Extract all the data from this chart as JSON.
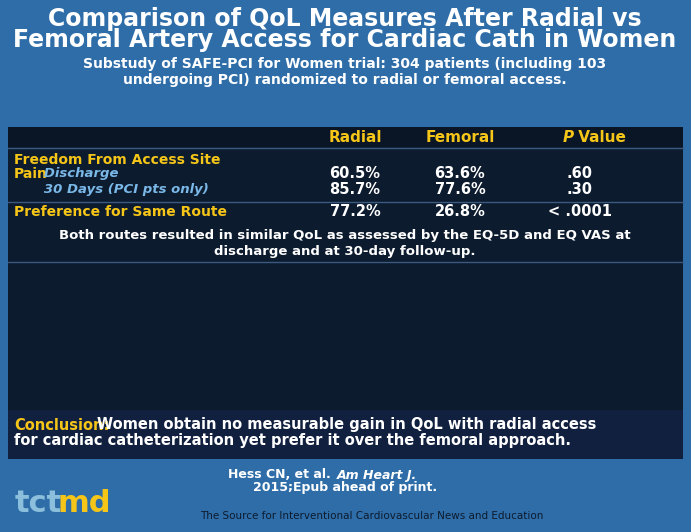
{
  "title_line1": "Comparison of QoL Measures After Radial vs",
  "title_line2": "Femoral Artery Access for Cardiac Cath in Women",
  "subtitle_line1": "Substudy of SAFE-PCI for Women trial: 304 patients (including 103",
  "subtitle_line2": "undergoing PCI) randomized to radial or femoral access.",
  "bg_top": "#2e6da8",
  "bg_dark": "#0d1b2e",
  "bg_conclusion": "#122040",
  "bg_footer": "#2e6da8",
  "table_header": [
    "Radial",
    "Femoral",
    "P Value"
  ],
  "row1_label_line1": "Freedom From Access Site",
  "row1_label_line2": "Pain",
  "row1_sub1": "   Discharge",
  "row1_sub2": "   30 Days (PCI pts only)",
  "row1_data": [
    [
      "60.5%",
      "63.6%",
      ".60"
    ],
    [
      "85.7%",
      "77.6%",
      ".30"
    ]
  ],
  "row2_label": "Preference for Same Route",
  "row2_data": [
    "77.2%",
    "26.8%",
    "< .0001"
  ],
  "note_line1": "Both routes resulted in similar QoL as assessed by the EQ-5D and EQ VAS at",
  "note_line2": "discharge and at 30-day follow-up.",
  "conclusion_label": "Conclusion:",
  "conclusion_text_line1": "  Women obtain no measurable gain in QoL with radial access",
  "conclusion_text_line2": "for cardiac catheterization yet prefer it over the femoral approach.",
  "citation_normal": "Hess CN, et al. ",
  "citation_italic": "Am Heart J.",
  "citation_line2": "2015;Epub ahead of print.",
  "footer_text": "The Source for Interventional Cardiovascular News and Education",
  "color_title": "#ffffff",
  "color_subtitle": "#ffffff",
  "color_header": "#f5c518",
  "color_row_label": "#f5c518",
  "color_row_sublabel": "#7ab8e8",
  "color_data": "#ffffff",
  "color_note": "#ffffff",
  "color_conclusion_label": "#f5c518",
  "color_conclusion_text": "#ffffff",
  "color_citation": "#ffffff",
  "color_footer": "#0d1b2e",
  "color_tct": "#8bbfdc",
  "color_md": "#f5c518"
}
